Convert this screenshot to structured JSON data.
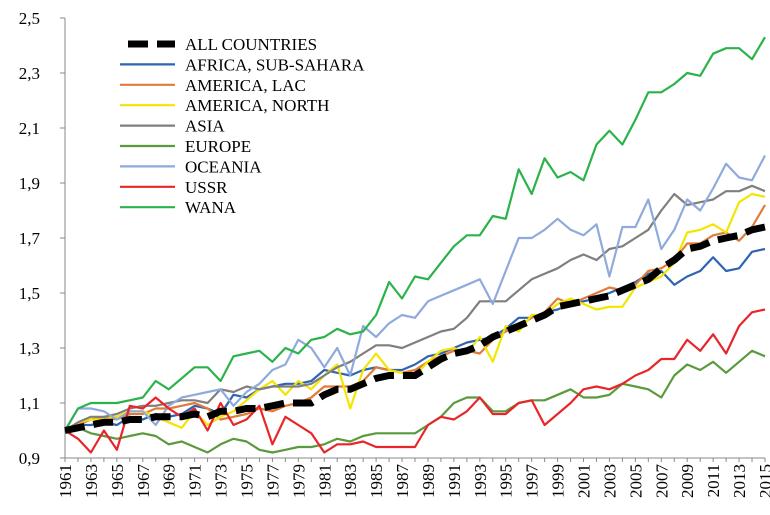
{
  "chart_data": {
    "type": "line",
    "categories": [
      "1961",
      null,
      "1963",
      null,
      "1965",
      null,
      "1967",
      null,
      "1969",
      null,
      "1971",
      null,
      "1973",
      null,
      "1975",
      null,
      "1977",
      null,
      "1979",
      null,
      "1981",
      null,
      "1983",
      null,
      "1985",
      null,
      "1987",
      null,
      "1989",
      null,
      "1991",
      null,
      "1993",
      null,
      "1995",
      null,
      "1997",
      null,
      "1999",
      null,
      "2001",
      null,
      "2003",
      null,
      "2005",
      null,
      "2007",
      null,
      "2009",
      null,
      "2011",
      null,
      "2013",
      null,
      "2015"
    ],
    "ylim": [
      0.9,
      2.5
    ],
    "yticks": [
      {
        "value": 0.9,
        "label": "0,9"
      },
      {
        "value": 1.1,
        "label": "1,1"
      },
      {
        "value": 1.3,
        "label": "1,3"
      },
      {
        "value": 1.5,
        "label": "1,5"
      },
      {
        "value": 1.7,
        "label": "1,7"
      },
      {
        "value": 1.9,
        "label": "1,9"
      },
      {
        "value": 2.1,
        "label": "2,1"
      },
      {
        "value": 2.3,
        "label": "2,3"
      },
      {
        "value": 2.5,
        "label": "2,5"
      }
    ],
    "grid": false,
    "legend": "upper-left",
    "series": [
      {
        "name": "ALL COUNTRIES",
        "color": "#000000",
        "style": "dashed",
        "values": [
          1.0,
          1.01,
          1.02,
          1.03,
          1.03,
          1.04,
          1.04,
          1.05,
          1.05,
          1.05,
          1.06,
          1.05,
          1.07,
          1.07,
          1.08,
          1.08,
          1.09,
          1.1,
          1.1,
          1.1,
          1.13,
          1.15,
          1.15,
          1.17,
          1.19,
          1.2,
          1.2,
          1.2,
          1.23,
          1.26,
          1.28,
          1.29,
          1.31,
          1.34,
          1.36,
          1.38,
          1.4,
          1.42,
          1.45,
          1.46,
          1.47,
          1.48,
          1.49,
          1.51,
          1.53,
          1.55,
          1.59,
          1.62,
          1.66,
          1.67,
          1.69,
          1.7,
          1.71,
          1.73,
          1.74
        ]
      },
      {
        "name": "AFRICA, SUB-SAHARA",
        "color": "#2e64b0",
        "values": [
          1.0,
          1.02,
          1.02,
          1.03,
          1.02,
          1.05,
          1.04,
          1.06,
          1.05,
          1.06,
          1.09,
          1.08,
          1.06,
          1.13,
          1.12,
          1.15,
          1.16,
          1.17,
          1.17,
          1.18,
          1.22,
          1.21,
          1.2,
          1.22,
          1.23,
          1.22,
          1.22,
          1.24,
          1.27,
          1.28,
          1.3,
          1.32,
          1.33,
          1.34,
          1.37,
          1.41,
          1.41,
          1.43,
          1.44,
          1.46,
          1.47,
          1.48,
          1.5,
          1.52,
          1.54,
          1.57,
          1.58,
          1.53,
          1.56,
          1.58,
          1.63,
          1.58,
          1.59,
          1.65,
          1.66
        ]
      },
      {
        "name": "AMERICA, LAC",
        "color": "#e07b39",
        "values": [
          1.0,
          1.02,
          1.04,
          1.05,
          1.04,
          1.06,
          1.06,
          1.08,
          1.08,
          1.09,
          1.1,
          1.08,
          1.04,
          1.05,
          1.06,
          1.08,
          1.07,
          1.09,
          1.1,
          1.12,
          1.16,
          1.16,
          1.16,
          1.18,
          1.23,
          1.22,
          1.21,
          1.22,
          1.25,
          1.27,
          1.29,
          1.29,
          1.28,
          1.33,
          1.36,
          1.38,
          1.41,
          1.43,
          1.48,
          1.46,
          1.48,
          1.5,
          1.52,
          1.51,
          1.53,
          1.58,
          1.59,
          1.62,
          1.68,
          1.68,
          1.71,
          1.72,
          1.69,
          1.74,
          1.82
        ]
      },
      {
        "name": "AMERICA, NORTH",
        "color": "#f2e600",
        "values": [
          1.0,
          1.03,
          1.04,
          1.04,
          1.05,
          1.07,
          1.07,
          1.05,
          1.03,
          1.01,
          1.07,
          1.02,
          1.05,
          1.07,
          1.11,
          1.15,
          1.18,
          1.13,
          1.18,
          1.15,
          1.2,
          1.24,
          1.08,
          1.22,
          1.28,
          1.22,
          1.21,
          1.2,
          1.25,
          1.29,
          1.3,
          1.28,
          1.34,
          1.25,
          1.38,
          1.36,
          1.42,
          1.42,
          1.46,
          1.48,
          1.46,
          1.44,
          1.45,
          1.45,
          1.52,
          1.54,
          1.56,
          1.61,
          1.72,
          1.73,
          1.75,
          1.72,
          1.83,
          1.86,
          1.85
        ]
      },
      {
        "name": "ASIA",
        "color": "#7f7f7f",
        "values": [
          1.0,
          1.03,
          1.05,
          1.05,
          1.06,
          1.08,
          1.09,
          1.09,
          1.1,
          1.11,
          1.11,
          1.1,
          1.15,
          1.14,
          1.16,
          1.15,
          1.16,
          1.16,
          1.16,
          1.17,
          1.2,
          1.23,
          1.25,
          1.28,
          1.31,
          1.31,
          1.3,
          1.32,
          1.34,
          1.36,
          1.37,
          1.41,
          1.47,
          1.47,
          1.47,
          1.51,
          1.55,
          1.57,
          1.59,
          1.62,
          1.64,
          1.62,
          1.66,
          1.67,
          1.7,
          1.73,
          1.8,
          1.86,
          1.82,
          1.83,
          1.84,
          1.87,
          1.87,
          1.89,
          1.87
        ]
      },
      {
        "name": "EUROPE",
        "color": "#5a9a3c",
        "values": [
          1.0,
          1.01,
          0.99,
          0.98,
          0.97,
          0.98,
          0.99,
          0.98,
          0.95,
          0.96,
          0.94,
          0.92,
          0.95,
          0.97,
          0.96,
          0.93,
          0.92,
          0.93,
          0.94,
          0.94,
          0.95,
          0.97,
          0.96,
          0.98,
          0.99,
          0.99,
          0.99,
          0.99,
          1.02,
          1.05,
          1.1,
          1.12,
          1.12,
          1.07,
          1.07,
          1.1,
          1.11,
          1.11,
          1.13,
          1.15,
          1.12,
          1.12,
          1.13,
          1.17,
          1.16,
          1.15,
          1.12,
          1.2,
          1.24,
          1.22,
          1.25,
          1.21,
          1.25,
          1.29,
          1.27
        ]
      },
      {
        "name": "OCEANIA",
        "color": "#8faadc",
        "values": [
          1.0,
          1.08,
          1.08,
          1.07,
          1.04,
          1.07,
          1.07,
          1.02,
          1.09,
          1.12,
          1.13,
          1.14,
          1.15,
          1.09,
          1.14,
          1.17,
          1.22,
          1.24,
          1.33,
          1.3,
          1.23,
          1.3,
          1.2,
          1.38,
          1.34,
          1.39,
          1.42,
          1.41,
          1.47,
          1.49,
          1.51,
          1.53,
          1.55,
          1.46,
          1.58,
          1.7,
          1.7,
          1.73,
          1.77,
          1.73,
          1.71,
          1.75,
          1.56,
          1.74,
          1.74,
          1.84,
          1.66,
          1.73,
          1.84,
          1.8,
          1.88,
          1.97,
          1.92,
          1.91,
          2.0
        ]
      },
      {
        "name": "USSR",
        "color": "#e8262a",
        "values": [
          1.0,
          0.97,
          0.92,
          1.0,
          0.93,
          1.09,
          1.08,
          1.12,
          1.08,
          1.05,
          1.08,
          1.0,
          1.1,
          1.02,
          1.04,
          1.09,
          0.95,
          1.05,
          1.02,
          0.99,
          0.92,
          0.95,
          0.95,
          0.96,
          0.94,
          0.94,
          0.94,
          0.94,
          1.02,
          1.05,
          1.04,
          1.07,
          1.12,
          1.06,
          1.06,
          1.1,
          1.11,
          1.02,
          1.06,
          1.1,
          1.15,
          1.16,
          1.15,
          1.17,
          1.2,
          1.22,
          1.26,
          1.26,
          1.33,
          1.29,
          1.35,
          1.28,
          1.38,
          1.43,
          1.44
        ]
      },
      {
        "name": "WANA",
        "color": "#2ab34b",
        "values": [
          1.0,
          1.08,
          1.1,
          1.1,
          1.1,
          1.11,
          1.12,
          1.18,
          1.15,
          1.19,
          1.23,
          1.23,
          1.18,
          1.27,
          1.28,
          1.29,
          1.25,
          1.3,
          1.28,
          1.33,
          1.34,
          1.37,
          1.35,
          1.36,
          1.42,
          1.54,
          1.48,
          1.56,
          1.55,
          1.61,
          1.67,
          1.71,
          1.71,
          1.78,
          1.77,
          1.95,
          1.86,
          1.99,
          1.92,
          1.94,
          1.91,
          2.04,
          2.09,
          2.04,
          2.13,
          2.23,
          2.23,
          2.26,
          2.3,
          2.29,
          2.37,
          2.39,
          2.39,
          2.35,
          2.43
        ]
      }
    ]
  }
}
